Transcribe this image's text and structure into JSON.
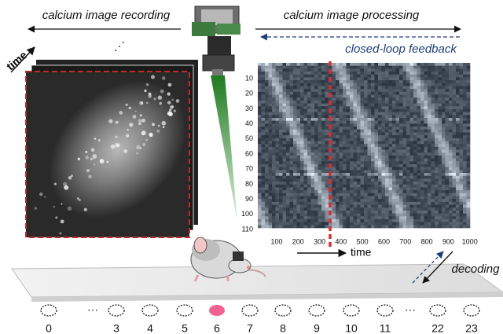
{
  "header": {
    "left_label": "calcium image recording",
    "right_label": "calcium image processing",
    "feedback_label": "closed-loop feedback"
  },
  "stack": {
    "time_label": "time",
    "ellipsis": "⋰"
  },
  "heatmap": {
    "yticks": [
      "10",
      "20",
      "30",
      "40",
      "50",
      "60",
      "70",
      "80",
      "90",
      "100",
      "110"
    ],
    "xticks": [
      "100",
      "200",
      "300",
      "400",
      "500",
      "600",
      "700",
      "800",
      "900",
      "1000"
    ],
    "time_label": "time"
  },
  "decoding_label": "decoding",
  "positions": [
    "0",
    "···",
    "3",
    "4",
    "5",
    "6",
    "7",
    "8",
    "9",
    "10",
    "11",
    "···",
    "22",
    "23"
  ]
}
